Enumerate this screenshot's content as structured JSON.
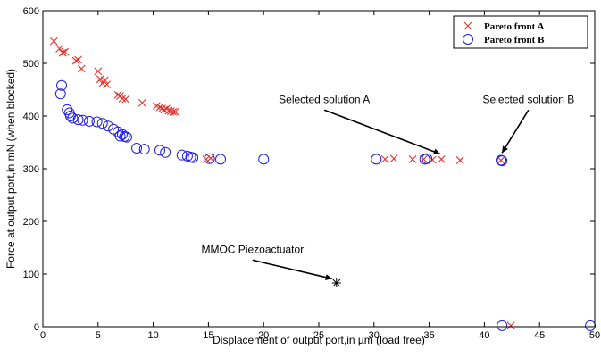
{
  "chart_data": {
    "type": "scatter",
    "xlabel": "Displacement of output port,in µm (load free)",
    "ylabel": "Force at output port,in mN (when blocked)",
    "xlim": [
      0,
      50
    ],
    "ylim": [
      0,
      600
    ],
    "xticks": [
      0,
      5,
      10,
      15,
      20,
      25,
      30,
      35,
      40,
      45,
      50
    ],
    "yticks": [
      0,
      100,
      200,
      300,
      400,
      500,
      600
    ],
    "xtick_labels": [
      "0",
      "5",
      "10",
      "15",
      "20",
      "25",
      "30",
      "35",
      "40",
      "45",
      "50"
    ],
    "ytick_labels": [
      "0",
      "100",
      "200",
      "300",
      "400",
      "500",
      "600"
    ],
    "grid": false,
    "legend_position": "top-right",
    "series": [
      {
        "name": "Pareto front A",
        "marker": "x",
        "color": "#e8302a",
        "x": [
          1.0,
          1.5,
          1.8,
          2.0,
          3.0,
          3.2,
          3.5,
          5.0,
          5.2,
          5.4,
          5.6,
          5.8,
          6.8,
          7.0,
          7.2,
          7.5,
          9.0,
          10.3,
          10.6,
          10.8,
          11.0,
          11.2,
          11.4,
          11.6,
          11.8,
          12.0,
          14.8,
          15.2,
          31.0,
          31.8,
          33.5,
          34.5,
          35.3,
          36.1,
          37.8,
          41.5,
          42.4
        ],
        "y": [
          542,
          528,
          520,
          522,
          505,
          507,
          490,
          485,
          470,
          462,
          468,
          460,
          440,
          438,
          433,
          432,
          425,
          419,
          417,
          414,
          412,
          414,
          410,
          409,
          408,
          408,
          318,
          320,
          318,
          319,
          318,
          318,
          317,
          318,
          316,
          316,
          2
        ]
      },
      {
        "name": "Pareto front B",
        "marker": "o",
        "color": "#1f1fe8",
        "x": [
          1.7,
          1.6,
          2.2,
          2.4,
          2.5,
          2.7,
          3.2,
          3.6,
          4.2,
          4.9,
          5.4,
          5.9,
          6.4,
          6.8,
          7.0,
          7.2,
          7.4,
          7.6,
          8.5,
          9.2,
          10.6,
          11.1,
          12.6,
          13.1,
          13.4,
          13.6,
          15.1,
          16.1,
          20.0,
          30.2,
          34.6,
          34.8,
          41.5,
          41.6,
          41.6,
          49.6
        ],
        "y": [
          458,
          442,
          412,
          406,
          400,
          396,
          393,
          392,
          390,
          389,
          386,
          381,
          375,
          370,
          362,
          365,
          361,
          360,
          339,
          337,
          335,
          331,
          326,
          324,
          322,
          321,
          319,
          318,
          318,
          318,
          318,
          319,
          316,
          315,
          2,
          2
        ]
      },
      {
        "name": "MMOC Piezoactuator",
        "marker": "*",
        "color": "#000000",
        "x": [
          26.6
        ],
        "y": [
          83
        ]
      }
    ],
    "annotations": [
      {
        "text": "Selected solution A",
        "text_x": 25.5,
        "text_y": 425,
        "arrow_to": [
          36.0,
          328
        ]
      },
      {
        "text": "Selected solution B",
        "text_x": 44.0,
        "text_y": 425,
        "arrow_to": [
          41.6,
          330
        ]
      },
      {
        "text": "MMOC Piezoactuator",
        "text_x": 19.0,
        "text_y": 140,
        "arrow_to": [
          26.2,
          91
        ]
      }
    ]
  }
}
